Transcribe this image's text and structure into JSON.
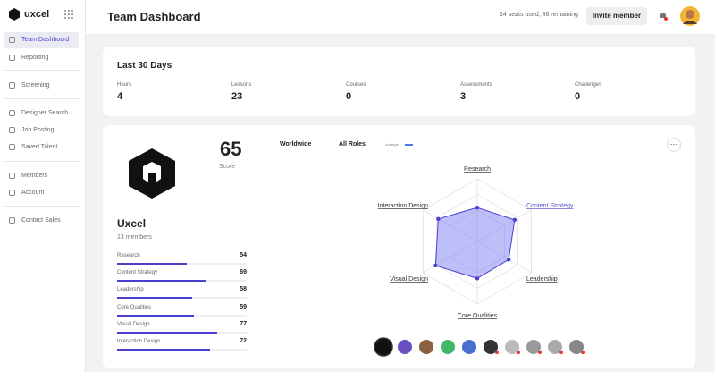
{
  "sidebar": {
    "brand": "uxcel",
    "items": [
      "Team Dashboard",
      "Reporting",
      "Screening",
      "Designer Search",
      "Job Posting",
      "Saved Talent",
      "Members",
      "Account",
      "Contact Sales"
    ]
  },
  "header": {
    "title": "Team Dashboard",
    "seats": "14 seats used, 86 remaining",
    "button": "Invite member"
  },
  "summary": {
    "title": "Last 30 Days",
    "stats": [
      {
        "label": "Hours",
        "value": 4
      },
      {
        "label": "Lessons",
        "value": 23
      },
      {
        "label": "Courses",
        "value": 0
      },
      {
        "label": "Assessments",
        "value": 3
      },
      {
        "label": "Challenges",
        "value": 0
      }
    ]
  },
  "team": {
    "name": "Uxcel",
    "members": "13 members",
    "score": 65,
    "score_label": "Score",
    "filters": [
      "Worldwide",
      "All Roles"
    ],
    "legend": "Average",
    "skills": [
      {
        "name": "Research",
        "value": 54
      },
      {
        "name": "Content Strategy",
        "value": 69
      },
      {
        "name": "Leadership",
        "value": 58
      },
      {
        "name": "Core Qualities",
        "value": 59
      },
      {
        "name": "Visual Design",
        "value": 77
      },
      {
        "name": "Interaction Design",
        "value": 72
      }
    ]
  }
}
